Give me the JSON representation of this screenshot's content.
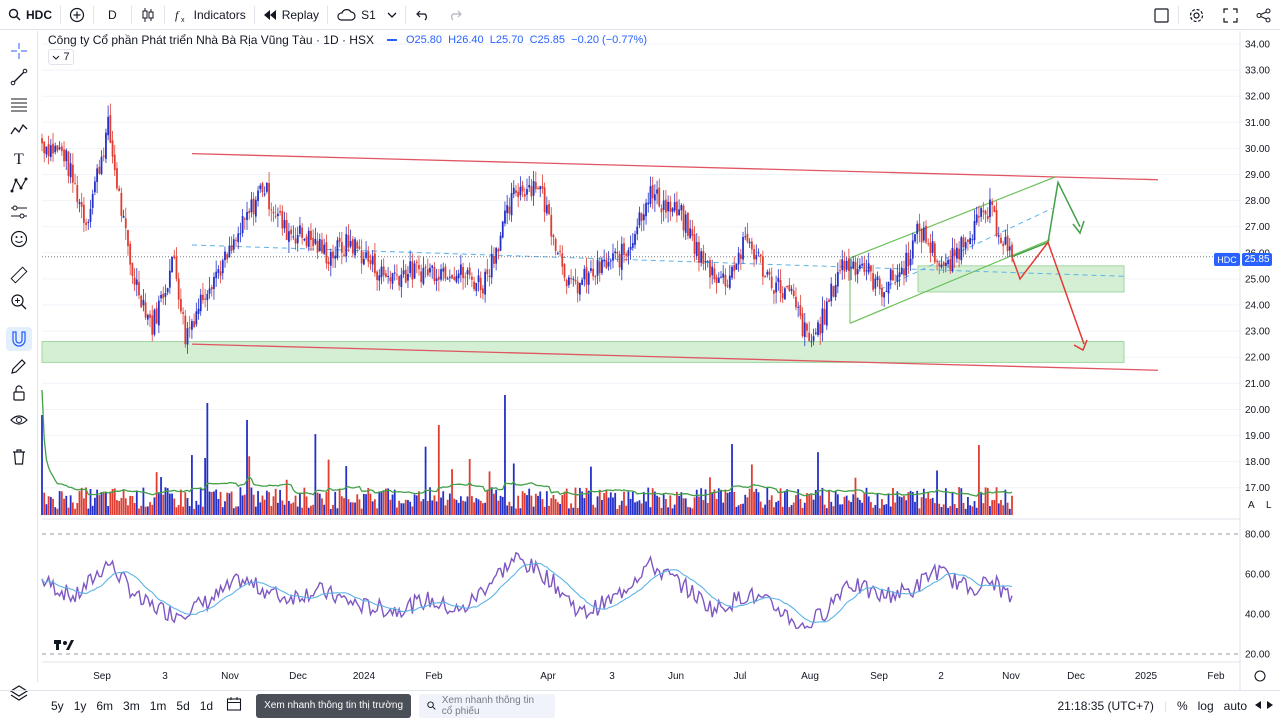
{
  "toolbar": {
    "symbol": "HDC",
    "interval": "D",
    "indicators_label": "Indicators",
    "replay_label": "Replay",
    "cloud_label": "S1"
  },
  "legend": {
    "title": "Công ty Cổ phần Phát triển Nhà Bà Rịa Vũng Tàu · 1D · HSX",
    "open": "O25.80",
    "high": "H26.40",
    "low": "L25.70",
    "close": "C25.85",
    "change": "−0.20 (−0.77%)",
    "collapse_count": "7"
  },
  "price_axis": {
    "ticks": [
      "34.00",
      "33.00",
      "32.00",
      "31.00",
      "30.00",
      "29.00",
      "28.00",
      "27.00",
      "26.00",
      "25.00",
      "24.00",
      "23.00",
      "22.00",
      "21.00",
      "20.00",
      "19.00",
      "18.00",
      "17.00"
    ],
    "last_symbol": "HDC",
    "last_price": "25.85",
    "scale_a": "A",
    "scale_l": "L"
  },
  "rsi_axis": {
    "ticks": [
      "80.00",
      "60.00",
      "40.00",
      "20.00"
    ]
  },
  "time_axis": {
    "labels": [
      "Sep",
      "3",
      "Nov",
      "Dec",
      "2024",
      "Feb",
      "Apr",
      "3",
      "Jun",
      "Jul",
      "Aug",
      "Sep",
      "2",
      "Nov",
      "Dec",
      "2025",
      "Feb"
    ]
  },
  "bottom": {
    "ranges": [
      "5y",
      "1y",
      "6m",
      "3m",
      "1m",
      "5d",
      "1d"
    ],
    "quick1": "Xem nhanh thông tin thị trường",
    "quick2": "Xem nhanh thông tin cổ phiếu",
    "clock": "21:18:35 (UTC+7)",
    "percent": "%",
    "log": "log",
    "auto": "auto"
  },
  "colors": {
    "up": "#2431c8",
    "down": "#e03d32",
    "trend": "#e05561",
    "channel": "#6bbf59",
    "zone": "#cdeccd",
    "rsi": "#7e57c2",
    "rsi_ma": "#5db3e6",
    "vol_ma": "#43a047"
  },
  "chart_data": {
    "type": "candlestick",
    "title": "Công ty Cổ phần Phát triển Nhà Bà Rịa Vũng Tàu · 1D · HSX",
    "ylim": [
      16.5,
      34.5
    ],
    "series": [
      {
        "name": "HDC close (approx.)",
        "anchors": [
          [
            0,
            30.2
          ],
          [
            10,
            29.8
          ],
          [
            20,
            27.2
          ],
          [
            30,
            30.8
          ],
          [
            40,
            25.5
          ],
          [
            50,
            23.2
          ],
          [
            60,
            25.8
          ],
          [
            65,
            22.8
          ],
          [
            75,
            24.8
          ],
          [
            85,
            25.9
          ],
          [
            100,
            28.6
          ],
          [
            110,
            26.9
          ],
          [
            120,
            26.6
          ],
          [
            130,
            25.9
          ],
          [
            140,
            26.4
          ],
          [
            155,
            25.1
          ],
          [
            170,
            25.3
          ],
          [
            185,
            25.4
          ],
          [
            200,
            24.8
          ],
          [
            215,
            28.4
          ],
          [
            225,
            28.7
          ],
          [
            240,
            24.6
          ],
          [
            255,
            25.5
          ],
          [
            265,
            26.0
          ],
          [
            275,
            28.3
          ],
          [
            290,
            27.4
          ],
          [
            300,
            25.6
          ],
          [
            310,
            24.9
          ],
          [
            320,
            26.5
          ],
          [
            330,
            25.0
          ],
          [
            340,
            24.3
          ],
          [
            348,
            22.5
          ],
          [
            355,
            23.6
          ],
          [
            362,
            25.5
          ],
          [
            372,
            25.6
          ],
          [
            380,
            24.6
          ],
          [
            390,
            25.3
          ],
          [
            398,
            26.9
          ],
          [
            410,
            25.3
          ],
          [
            420,
            26.8
          ],
          [
            430,
            27.6
          ],
          [
            440,
            25.85
          ]
        ]
      },
      {
        "name": "RSI (approx.)",
        "anchors": [
          [
            0,
            57
          ],
          [
            15,
            48
          ],
          [
            30,
            66
          ],
          [
            45,
            46
          ],
          [
            60,
            40
          ],
          [
            75,
            46
          ],
          [
            90,
            57
          ],
          [
            110,
            48
          ],
          [
            125,
            52
          ],
          [
            145,
            44
          ],
          [
            160,
            42
          ],
          [
            175,
            47
          ],
          [
            190,
            41
          ],
          [
            205,
            58
          ],
          [
            215,
            68
          ],
          [
            230,
            58
          ],
          [
            245,
            40
          ],
          [
            260,
            48
          ],
          [
            275,
            65
          ],
          [
            290,
            55
          ],
          [
            305,
            42
          ],
          [
            320,
            50
          ],
          [
            335,
            42
          ],
          [
            345,
            33
          ],
          [
            355,
            41
          ],
          [
            365,
            56
          ],
          [
            380,
            49
          ],
          [
            395,
            52
          ],
          [
            405,
            62
          ],
          [
            420,
            53
          ],
          [
            432,
            56
          ],
          [
            440,
            47
          ]
        ]
      }
    ],
    "annotations": [
      "Descending red trend channel ~29.8 → 21.5",
      "Rising green channel Aug–Nov",
      "Support zones 24.5–25.5 and 21.8–22.6",
      "Bullish projection to ~28.7 then 27.0",
      "Bearish projection to ~22.5"
    ],
    "volume_ma": true,
    "rsi_levels": [
      80,
      20
    ]
  }
}
